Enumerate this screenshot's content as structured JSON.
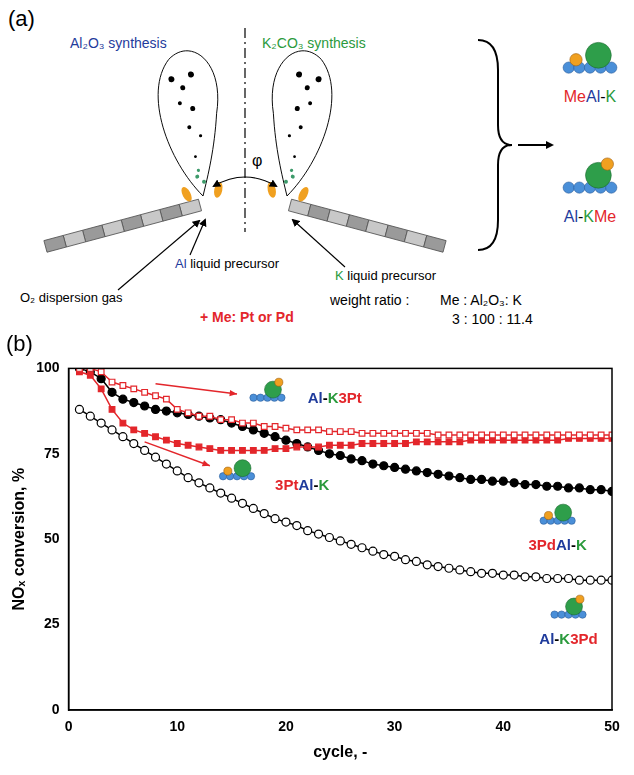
{
  "panel_a": {
    "label": "(a)",
    "left_title": "Al₂O₃ synthesis",
    "right_title": "K₂CO₃ synthesis",
    "angle_symbol": "φ",
    "left_precursor": "Al liquid precursor",
    "right_precursor": "K liquid precursor",
    "dispersion_gas": "O₂ dispersion gas",
    "metal_note": "+ Me: Pt or Pd",
    "weight_ratio_label": "weight ratio :",
    "weight_ratio_header": "Me : Al₂O₃: K",
    "weight_ratio_values": "3 : 100 : 11.4",
    "products": [
      "MeAl-K",
      "Al-KMe"
    ]
  },
  "chart_data": {
    "type": "scatter",
    "title": "(b)",
    "x_label": "cycle, -",
    "y_label": "NOₓ conversion, %",
    "xlim": [
      0,
      50
    ],
    "xticks": [
      0,
      10,
      20,
      30,
      40,
      50
    ],
    "ylim": [
      0,
      100
    ],
    "yticks": [
      0,
      25,
      50,
      75,
      100
    ],
    "grid": false,
    "x": [
      1,
      2,
      3,
      4,
      5,
      6,
      7,
      8,
      9,
      10,
      11,
      12,
      13,
      14,
      15,
      16,
      17,
      18,
      19,
      20,
      21,
      22,
      23,
      24,
      25,
      26,
      27,
      28,
      29,
      30,
      31,
      32,
      33,
      34,
      35,
      36,
      37,
      38,
      39,
      40,
      41,
      42,
      43,
      44,
      45,
      46,
      47,
      48,
      49,
      50
    ],
    "series": [
      {
        "name": "Al-K3Pt",
        "color": "#e3262b",
        "marker": "square-open",
        "line_style": "solid",
        "values": [
          100,
          100,
          99,
          96,
          95,
          94,
          93,
          92,
          91,
          88,
          87,
          86,
          86,
          85,
          85,
          84,
          84,
          83,
          83,
          82.5,
          82,
          82,
          82,
          81.5,
          81.5,
          81.5,
          81,
          81,
          81,
          81,
          81,
          81,
          81,
          80.5,
          80.5,
          80.5,
          80.5,
          80.5,
          80.5,
          80.5,
          80.5,
          80.5,
          80.5,
          80.5,
          80.5,
          80.5,
          80.5,
          80.5,
          80.5,
          80.5
        ]
      },
      {
        "name": "3PtAl-K",
        "color": "#e3262b",
        "marker": "square",
        "line_style": "solid",
        "values": [
          99,
          98,
          94,
          88,
          84,
          82,
          81,
          80,
          79,
          78,
          77.5,
          77,
          76.5,
          76,
          76,
          76,
          76,
          76,
          76.5,
          76.5,
          77,
          77,
          77,
          77.5,
          77.5,
          77.5,
          78,
          78,
          78,
          78,
          78,
          78.5,
          78.5,
          78.5,
          78.5,
          78.5,
          79,
          79,
          79,
          79,
          79,
          79,
          79,
          79,
          79,
          79.5,
          79.5,
          79.5,
          79.5,
          79.5
        ]
      },
      {
        "name": "3PdAl-K",
        "color": "#000000",
        "marker": "circle",
        "line_style": "solid",
        "values": [
          100,
          99,
          97,
          93,
          91,
          90,
          89,
          88,
          87.5,
          87,
          86.5,
          86,
          85.5,
          85,
          84,
          83,
          82,
          81,
          80,
          79,
          78,
          77,
          76,
          75,
          74.5,
          73.5,
          73,
          72,
          71.5,
          71,
          70.5,
          70,
          69.5,
          69,
          68.5,
          68,
          67.5,
          67.5,
          67,
          67,
          66.5,
          66,
          66,
          65.5,
          65.5,
          65,
          65,
          64.5,
          64.5,
          64
        ]
      },
      {
        "name": "Al-K3Pd",
        "color": "#000000",
        "marker": "circle-open",
        "line_style": "solid",
        "values": [
          88,
          86,
          84,
          82,
          80,
          78,
          76,
          74,
          72,
          70,
          68,
          66.5,
          65,
          63.5,
          62,
          60.5,
          59,
          57.5,
          56,
          55,
          54,
          52.5,
          51.5,
          50.5,
          49.5,
          48.5,
          47.5,
          46.5,
          45.5,
          45,
          44,
          43.5,
          42.5,
          42,
          41.5,
          41,
          40.5,
          40,
          40,
          39.5,
          39.5,
          39,
          39,
          38.5,
          38.5,
          38.5,
          38,
          38,
          38,
          38
        ]
      }
    ]
  }
}
